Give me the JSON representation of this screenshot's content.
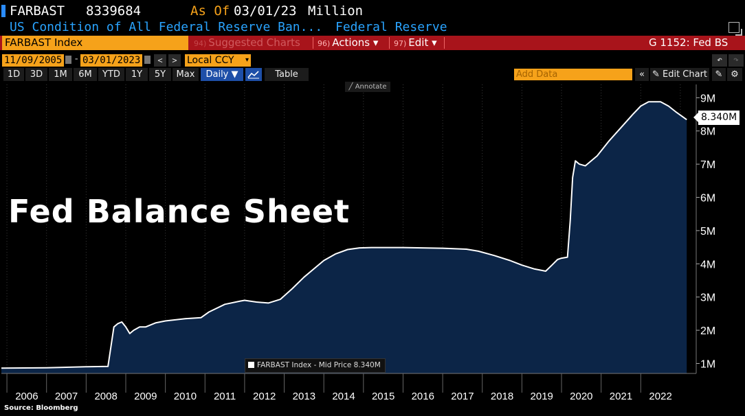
{
  "header": {
    "ticker": "FARBAST",
    "last_value": "8339684",
    "as_of_label": "As Of",
    "as_of_date": "03/01/23",
    "units": "Million",
    "description": "US Condition of All Federal Reserve Ban...",
    "source_name": "Federal Reserve"
  },
  "toolbar": {
    "security": "FARBAST Index",
    "suggested_num": "94)",
    "suggested_label": "Suggested Charts",
    "actions_num": "96)",
    "actions_label": "Actions ▾",
    "edit_num": "97)",
    "edit_label": "Edit ▾",
    "page_id": "G 1152: Fed BS"
  },
  "dates": {
    "start": "11/09/2005",
    "end": "03/01/2023",
    "currency": "Local CCY"
  },
  "ranges": [
    "1D",
    "3D",
    "1M",
    "6M",
    "YTD",
    "1Y",
    "5Y",
    "Max"
  ],
  "frequency": "Daily ▼",
  "table_label": "Table",
  "add_data_placeholder": "Add Data",
  "edit_chart_label": "Edit Chart",
  "annotate_label": "Annotate",
  "colors": {
    "accent_orange": "#f6a21a",
    "toolbar_red": "#a8141b",
    "header_blue": "#2aa4ff",
    "area_fill": "#0c2547",
    "line": "#ffffff"
  },
  "chart_data": {
    "type": "area",
    "title": "Fed Balance Sheet",
    "legend": "FARBAST Index - Mid Price 8.340M",
    "last_value_label": "8.340M",
    "x_ticks": [
      "2006",
      "2007",
      "2008",
      "2009",
      "2010",
      "2011",
      "2012",
      "2013",
      "2014",
      "2015",
      "2016",
      "2017",
      "2018",
      "2019",
      "2020",
      "2021",
      "2022"
    ],
    "y_ticks": [
      "1M",
      "2M",
      "3M",
      "4M",
      "5M",
      "6M",
      "7M",
      "8M",
      "9M"
    ],
    "ylim": [
      0.7,
      9.4
    ],
    "xlim": [
      2005.86,
      2023.4
    ],
    "units": "Million (millions of USD, axis in M)",
    "series": [
      {
        "name": "FARBAST Index",
        "x": [
          2005.86,
          2007.0,
          2008.0,
          2008.55,
          2008.7,
          2008.8,
          2008.9,
          2009.0,
          2009.1,
          2009.2,
          2009.35,
          2009.5,
          2009.75,
          2010.0,
          2010.5,
          2010.9,
          2011.1,
          2011.5,
          2011.9,
          2012.0,
          2012.3,
          2012.6,
          2012.9,
          2013.2,
          2013.5,
          2013.8,
          2014.0,
          2014.3,
          2014.6,
          2014.9,
          2015.2,
          2016.0,
          2017.0,
          2017.6,
          2017.9,
          2018.3,
          2018.7,
          2019.0,
          2019.3,
          2019.6,
          2019.75,
          2019.9,
          2020.0,
          2020.15,
          2020.22,
          2020.28,
          2020.35,
          2020.45,
          2020.6,
          2020.9,
          2021.2,
          2021.5,
          2021.8,
          2022.0,
          2022.2,
          2022.5,
          2022.7,
          2022.9,
          2023.16
        ],
        "values": [
          0.86,
          0.87,
          0.9,
          0.91,
          2.1,
          2.2,
          2.25,
          2.1,
          1.9,
          2.0,
          2.1,
          2.1,
          2.22,
          2.28,
          2.35,
          2.38,
          2.55,
          2.78,
          2.88,
          2.9,
          2.85,
          2.82,
          2.93,
          3.25,
          3.6,
          3.9,
          4.1,
          4.3,
          4.43,
          4.48,
          4.49,
          4.49,
          4.47,
          4.44,
          4.38,
          4.25,
          4.1,
          3.96,
          3.85,
          3.78,
          3.95,
          4.13,
          4.17,
          4.2,
          5.3,
          6.6,
          7.1,
          7.0,
          6.95,
          7.25,
          7.7,
          8.1,
          8.5,
          8.75,
          8.88,
          8.88,
          8.75,
          8.56,
          8.34
        ]
      }
    ],
    "grid": "vertical dotted lines at years",
    "source_note": "Source: Bloomberg"
  }
}
